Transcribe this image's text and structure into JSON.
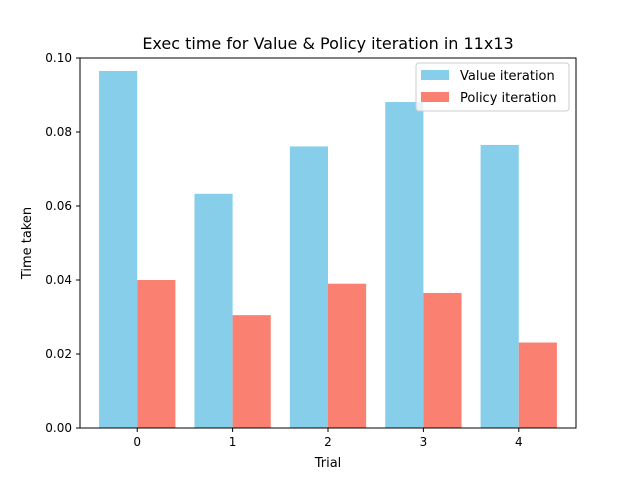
{
  "chart_data": {
    "type": "bar",
    "title": "Exec time for Value & Policy iteration in 11x13",
    "xlabel": "Trial",
    "ylabel": "Time taken",
    "categories": [
      "0",
      "1",
      "2",
      "3",
      "4"
    ],
    "series": [
      {
        "name": "Value iteration",
        "color": "#87CEEB",
        "values": [
          0.0965,
          0.0633,
          0.0761,
          0.0881,
          0.0765
        ]
      },
      {
        "name": "Policy iteration",
        "color": "#FA8072",
        "values": [
          0.04,
          0.0305,
          0.039,
          0.0365,
          0.0231
        ]
      }
    ],
    "ylim": [
      0,
      0.1
    ],
    "yticks": [
      "0.00",
      "0.02",
      "0.04",
      "0.06",
      "0.08",
      "0.10"
    ],
    "grid": false,
    "legend_position": "top-right"
  }
}
